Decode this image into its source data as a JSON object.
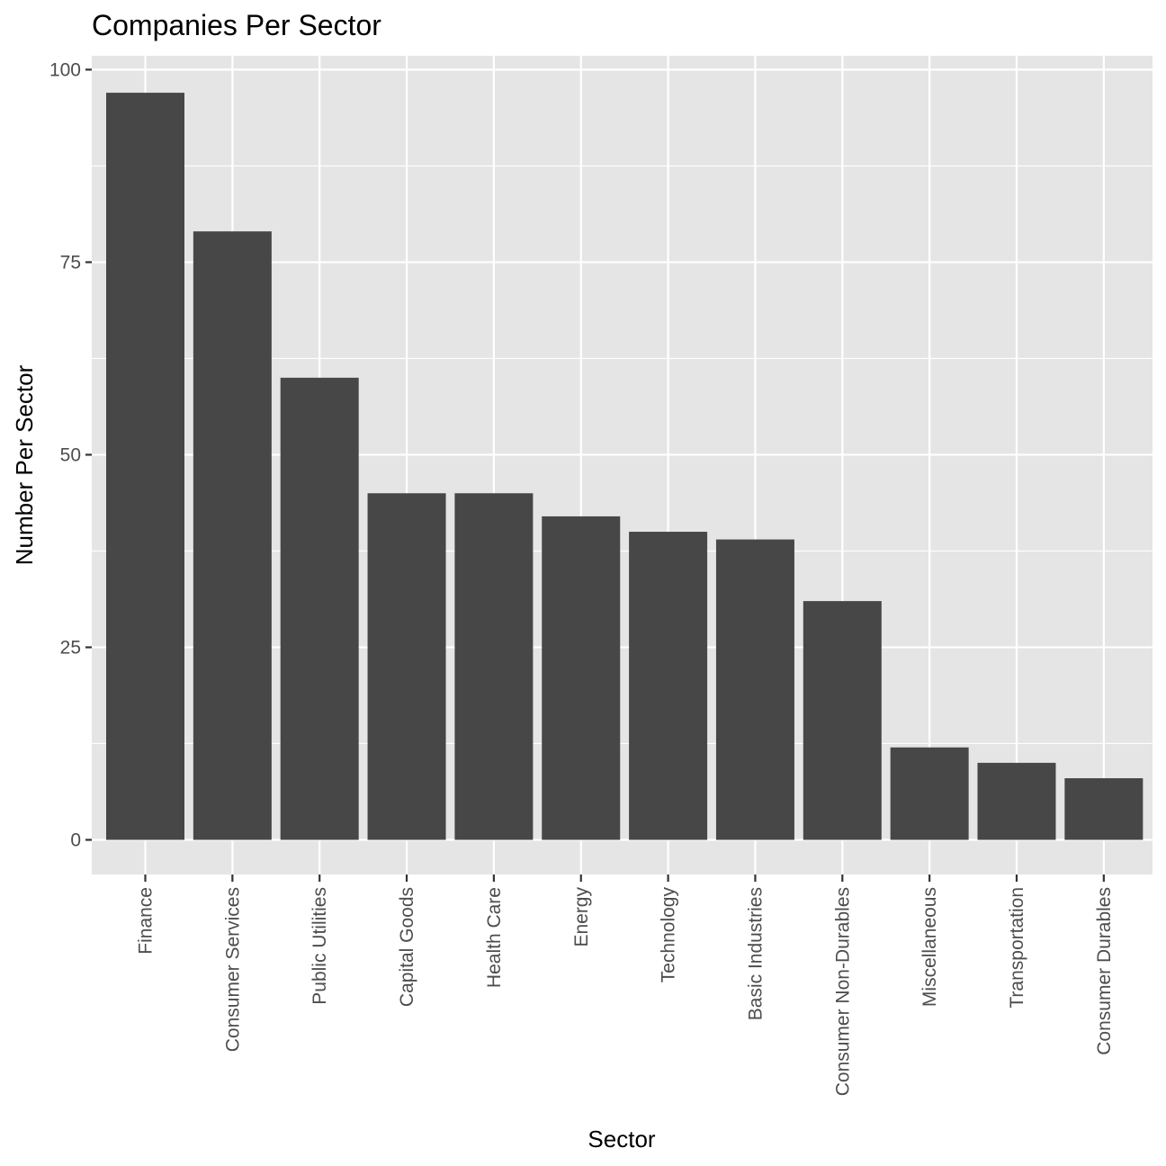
{
  "chart_data": {
    "type": "bar",
    "title": "Companies Per Sector",
    "xlabel": "Sector",
    "ylabel": "Number Per Sector",
    "categories": [
      "Finance",
      "Consumer Services",
      "Public Utilities",
      "Capital Goods",
      "Health Care",
      "Energy",
      "Technology",
      "Basic Industries",
      "Consumer Non-Durables",
      "Miscellaneous",
      "Transportation",
      "Consumer Durables"
    ],
    "values": [
      97,
      79,
      60,
      45,
      45,
      42,
      40,
      39,
      31,
      12,
      10,
      8
    ],
    "ylim": [
      -4.5,
      101.8
    ],
    "yticks": [
      0,
      25,
      50,
      75,
      100
    ],
    "yticks_minor": [
      12.5,
      37.5,
      62.5,
      87.5
    ],
    "grid": true,
    "legend": "none",
    "colors": {
      "bar": "#474747",
      "panel": "#e5e5e5",
      "grid": "#ffffff"
    }
  }
}
